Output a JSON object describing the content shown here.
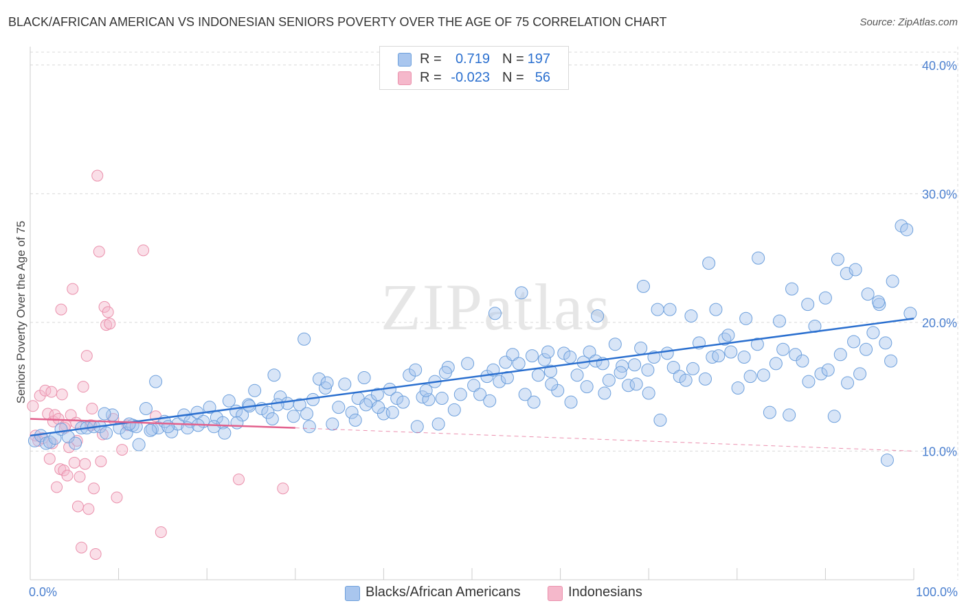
{
  "title": "BLACK/AFRICAN AMERICAN VS INDONESIAN SENIORS POVERTY OVER THE AGE OF 75 CORRELATION CHART",
  "source": "Source: ZipAtlas.com",
  "watermark": "ZIPatlas",
  "legend": {
    "rows": [
      {
        "r_label": "R =",
        "r_value": "0.719",
        "n_label": "N =",
        "n_value": "197"
      },
      {
        "r_label": "R =",
        "r_value": "-0.023",
        "n_label": "N =",
        "n_value": "56"
      }
    ]
  },
  "bottom_legend": {
    "series_a": "Blacks/African Americans",
    "series_b": "Indonesians"
  },
  "colors": {
    "blue_fill": "#a9c6ee",
    "blue_stroke": "#6c9fdc",
    "blue_line": "#2a6fcf",
    "pink_fill": "#f5b8cb",
    "pink_stroke": "#ea8fab",
    "pink_line": "#e2608c",
    "tick_text": "#4a7fcf",
    "grid": "#d9d9d9"
  },
  "chart_data": {
    "type": "scatter",
    "title": "BLACK/AFRICAN AMERICAN VS INDONESIAN SENIORS POVERTY OVER THE AGE OF 75 CORRELATION CHART",
    "xlabel": "",
    "ylabel": "Seniors Poverty Over the Age of 75",
    "xlim": [
      0,
      100
    ],
    "ylim": [
      0,
      41
    ],
    "x_tick_labels": [
      "0.0%",
      "100.0%"
    ],
    "y_ticks": [
      10,
      20,
      30,
      40
    ],
    "y_tick_labels": [
      "10.0%",
      "20.0%",
      "30.0%",
      "40.0%"
    ],
    "grid": true,
    "legend_position": "top-center",
    "series": [
      {
        "name": "Blacks/African Americans",
        "R": 0.719,
        "N": 197,
        "trend": {
          "x0": 0,
          "y0": 11.2,
          "x1": 100,
          "y1": 20.3,
          "style": "solid"
        },
        "points": [
          [
            0.5,
            10.8
          ],
          [
            1.2,
            11.2
          ],
          [
            1.8,
            10.6
          ],
          [
            2.2,
            10.7
          ],
          [
            2.8,
            11.0
          ],
          [
            3.5,
            11.7
          ],
          [
            4.3,
            11.1
          ],
          [
            5.1,
            10.6
          ],
          [
            5.8,
            11.8
          ],
          [
            6.4,
            11.8
          ],
          [
            7.2,
            11.9
          ],
          [
            7.9,
            11.9
          ],
          [
            8.6,
            11.4
          ],
          [
            9.3,
            12.8
          ],
          [
            10.1,
            11.8
          ],
          [
            10.9,
            11.4
          ],
          [
            11.6,
            12.0
          ],
          [
            12.3,
            10.5
          ],
          [
            13.1,
            13.3
          ],
          [
            13.8,
            11.7
          ],
          [
            14.5,
            11.8
          ],
          [
            15.2,
            12.3
          ],
          [
            16.0,
            11.5
          ],
          [
            16.7,
            12.1
          ],
          [
            17.4,
            12.8
          ],
          [
            18.1,
            12.3
          ],
          [
            18.9,
            13.0
          ],
          [
            19.6,
            12.3
          ],
          [
            20.3,
            13.4
          ],
          [
            21.1,
            12.6
          ],
          [
            21.8,
            12.2
          ],
          [
            22.5,
            13.9
          ],
          [
            23.3,
            13.1
          ],
          [
            24.0,
            12.8
          ],
          [
            24.7,
            13.6
          ],
          [
            25.4,
            14.7
          ],
          [
            26.2,
            13.3
          ],
          [
            26.9,
            13.0
          ],
          [
            27.6,
            15.9
          ],
          [
            28.3,
            14.2
          ],
          [
            29.1,
            13.7
          ],
          [
            29.8,
            12.7
          ],
          [
            30.5,
            13.6
          ],
          [
            31.3,
            12.9
          ],
          [
            32.0,
            14.0
          ],
          [
            32.7,
            15.6
          ],
          [
            33.4,
            14.9
          ],
          [
            34.2,
            12.1
          ],
          [
            34.9,
            13.4
          ],
          [
            35.6,
            15.2
          ],
          [
            36.4,
            13.0
          ],
          [
            37.1,
            14.1
          ],
          [
            37.8,
            15.7
          ],
          [
            38.5,
            13.9
          ],
          [
            39.3,
            14.4
          ],
          [
            40.0,
            12.9
          ],
          [
            40.7,
            14.8
          ],
          [
            41.5,
            14.1
          ],
          [
            42.2,
            13.8
          ],
          [
            42.9,
            15.9
          ],
          [
            43.6,
            16.3
          ],
          [
            44.4,
            14.2
          ],
          [
            45.1,
            14.0
          ],
          [
            45.8,
            15.4
          ],
          [
            46.6,
            14.1
          ],
          [
            47.3,
            16.5
          ],
          [
            48.0,
            13.2
          ],
          [
            48.7,
            14.4
          ],
          [
            49.5,
            16.8
          ],
          [
            50.2,
            15.1
          ],
          [
            50.9,
            14.4
          ],
          [
            51.7,
            15.8
          ],
          [
            52.4,
            16.3
          ],
          [
            53.1,
            15.4
          ],
          [
            53.8,
            16.9
          ],
          [
            54.6,
            17.5
          ],
          [
            55.3,
            16.8
          ],
          [
            56.0,
            14.4
          ],
          [
            56.8,
            17.4
          ],
          [
            57.5,
            15.9
          ],
          [
            58.2,
            17.1
          ],
          [
            58.9,
            16.2
          ],
          [
            59.7,
            14.7
          ],
          [
            60.4,
            17.6
          ],
          [
            61.1,
            17.3
          ],
          [
            61.9,
            15.9
          ],
          [
            62.6,
            16.9
          ],
          [
            63.3,
            17.7
          ],
          [
            64.0,
            17.0
          ],
          [
            64.8,
            16.8
          ],
          [
            65.5,
            15.5
          ],
          [
            66.2,
            18.3
          ],
          [
            67.0,
            16.6
          ],
          [
            67.7,
            15.1
          ],
          [
            68.4,
            16.7
          ],
          [
            69.1,
            18.0
          ],
          [
            69.9,
            16.3
          ],
          [
            70.6,
            17.3
          ],
          [
            71.3,
            12.4
          ],
          [
            72.1,
            17.6
          ],
          [
            72.8,
            16.5
          ],
          [
            73.5,
            15.8
          ],
          [
            74.2,
            15.5
          ],
          [
            75.0,
            16.4
          ],
          [
            75.7,
            18.4
          ],
          [
            76.4,
            15.6
          ],
          [
            77.2,
            17.3
          ],
          [
            77.9,
            17.4
          ],
          [
            78.6,
            18.7
          ],
          [
            79.3,
            17.7
          ],
          [
            80.1,
            14.9
          ],
          [
            80.8,
            17.3
          ],
          [
            81.5,
            15.8
          ],
          [
            82.3,
            18.3
          ],
          [
            83.0,
            15.9
          ],
          [
            83.7,
            13.0
          ],
          [
            84.4,
            16.8
          ],
          [
            85.2,
            17.9
          ],
          [
            85.9,
            12.8
          ],
          [
            86.6,
            17.5
          ],
          [
            87.4,
            17.0
          ],
          [
            88.1,
            15.4
          ],
          [
            88.8,
            19.7
          ],
          [
            89.5,
            16.0
          ],
          [
            90.3,
            16.3
          ],
          [
            91.0,
            12.7
          ],
          [
            91.7,
            17.5
          ],
          [
            92.5,
            15.3
          ],
          [
            93.2,
            18.5
          ],
          [
            93.9,
            16.0
          ],
          [
            94.6,
            17.9
          ],
          [
            95.4,
            19.2
          ],
          [
            96.1,
            21.4
          ],
          [
            96.8,
            18.4
          ],
          [
            97.6,
            23.2
          ],
          [
            12.0,
            11.9
          ],
          [
            13.6,
            11.6
          ],
          [
            15.6,
            11.9
          ],
          [
            20.8,
            11.9
          ],
          [
            24.8,
            13.5
          ],
          [
            27.4,
            12.5
          ],
          [
            31.6,
            11.9
          ],
          [
            36.8,
            12.4
          ],
          [
            39.4,
            13.4
          ],
          [
            41.0,
            13.0
          ],
          [
            43.8,
            11.9
          ],
          [
            46.2,
            12.1
          ],
          [
            52.0,
            13.9
          ],
          [
            54.0,
            15.7
          ],
          [
            57.0,
            13.8
          ],
          [
            59.0,
            15.2
          ],
          [
            61.2,
            13.8
          ],
          [
            63.0,
            15.0
          ],
          [
            65.0,
            14.5
          ],
          [
            66.8,
            16.1
          ],
          [
            68.6,
            15.2
          ],
          [
            70.0,
            14.5
          ],
          [
            72.4,
            21.0
          ],
          [
            74.8,
            20.5
          ],
          [
            76.8,
            24.6
          ],
          [
            79.0,
            19.0
          ],
          [
            81.0,
            20.3
          ],
          [
            82.4,
            25.0
          ],
          [
            84.8,
            20.1
          ],
          [
            86.2,
            22.6
          ],
          [
            88.0,
            21.4
          ],
          [
            90.0,
            21.9
          ],
          [
            91.4,
            24.9
          ],
          [
            92.4,
            23.8
          ],
          [
            93.4,
            24.1
          ],
          [
            94.8,
            22.2
          ],
          [
            96.0,
            21.6
          ],
          [
            97.4,
            17.0
          ],
          [
            98.6,
            27.5
          ],
          [
            99.2,
            27.2
          ],
          [
            99.6,
            20.7
          ],
          [
            97.0,
            9.3
          ],
          [
            31.0,
            18.7
          ],
          [
            47.0,
            16.1
          ],
          [
            52.6,
            20.7
          ],
          [
            55.6,
            22.3
          ],
          [
            58.6,
            17.7
          ],
          [
            64.2,
            20.5
          ],
          [
            69.4,
            22.8
          ],
          [
            71.0,
            21.0
          ],
          [
            77.6,
            21.0
          ],
          [
            8.4,
            12.9
          ],
          [
            11.2,
            12.1
          ],
          [
            14.2,
            15.4
          ],
          [
            17.8,
            11.8
          ],
          [
            19.0,
            12.0
          ],
          [
            22.0,
            11.4
          ],
          [
            23.4,
            12.2
          ],
          [
            28.0,
            13.6
          ],
          [
            33.6,
            15.3
          ],
          [
            38.0,
            13.6
          ],
          [
            44.8,
            14.7
          ]
        ]
      },
      {
        "name": "Indonesians",
        "R": -0.023,
        "N": 56,
        "trend_solid": {
          "x0": 0,
          "y0": 12.5,
          "x1": 30,
          "y1": 11.8
        },
        "trend_dashed": {
          "x0": 30,
          "y0": 11.8,
          "x1": 100,
          "y1": 10.0
        },
        "points": [
          [
            0.3,
            13.5
          ],
          [
            0.6,
            11.2
          ],
          [
            0.9,
            10.8
          ],
          [
            1.1,
            14.3
          ],
          [
            1.4,
            11.0
          ],
          [
            1.7,
            14.7
          ],
          [
            2.0,
            12.9
          ],
          [
            2.2,
            9.4
          ],
          [
            2.4,
            14.6
          ],
          [
            2.6,
            12.3
          ],
          [
            2.8,
            12.8
          ],
          [
            3.0,
            7.2
          ],
          [
            3.2,
            12.5
          ],
          [
            3.4,
            8.6
          ],
          [
            3.5,
            21.0
          ],
          [
            3.6,
            14.4
          ],
          [
            3.8,
            8.5
          ],
          [
            4.0,
            12.0
          ],
          [
            4.2,
            8.1
          ],
          [
            4.4,
            10.3
          ],
          [
            4.6,
            12.8
          ],
          [
            4.8,
            22.6
          ],
          [
            5.0,
            9.1
          ],
          [
            5.2,
            12.2
          ],
          [
            5.4,
            5.7
          ],
          [
            5.6,
            8.0
          ],
          [
            5.8,
            2.5
          ],
          [
            6.0,
            15.0
          ],
          [
            6.2,
            9.0
          ],
          [
            6.4,
            17.4
          ],
          [
            6.6,
            5.5
          ],
          [
            6.8,
            12.0
          ],
          [
            7.0,
            13.3
          ],
          [
            7.2,
            7.1
          ],
          [
            7.4,
            2.0
          ],
          [
            7.6,
            31.4
          ],
          [
            7.8,
            25.5
          ],
          [
            8.0,
            9.2
          ],
          [
            8.2,
            11.3
          ],
          [
            8.4,
            21.2
          ],
          [
            8.6,
            19.8
          ],
          [
            8.8,
            20.8
          ],
          [
            9.0,
            19.9
          ],
          [
            9.4,
            12.5
          ],
          [
            9.8,
            6.4
          ],
          [
            10.4,
            10.1
          ],
          [
            11.0,
            12.0
          ],
          [
            12.8,
            25.6
          ],
          [
            14.2,
            12.7
          ],
          [
            14.8,
            3.7
          ],
          [
            23.6,
            7.8
          ],
          [
            28.6,
            7.1
          ],
          [
            2.5,
            10.6
          ],
          [
            3.9,
            11.8
          ],
          [
            5.3,
            10.8
          ],
          [
            6.9,
            12.0
          ]
        ]
      }
    ]
  }
}
